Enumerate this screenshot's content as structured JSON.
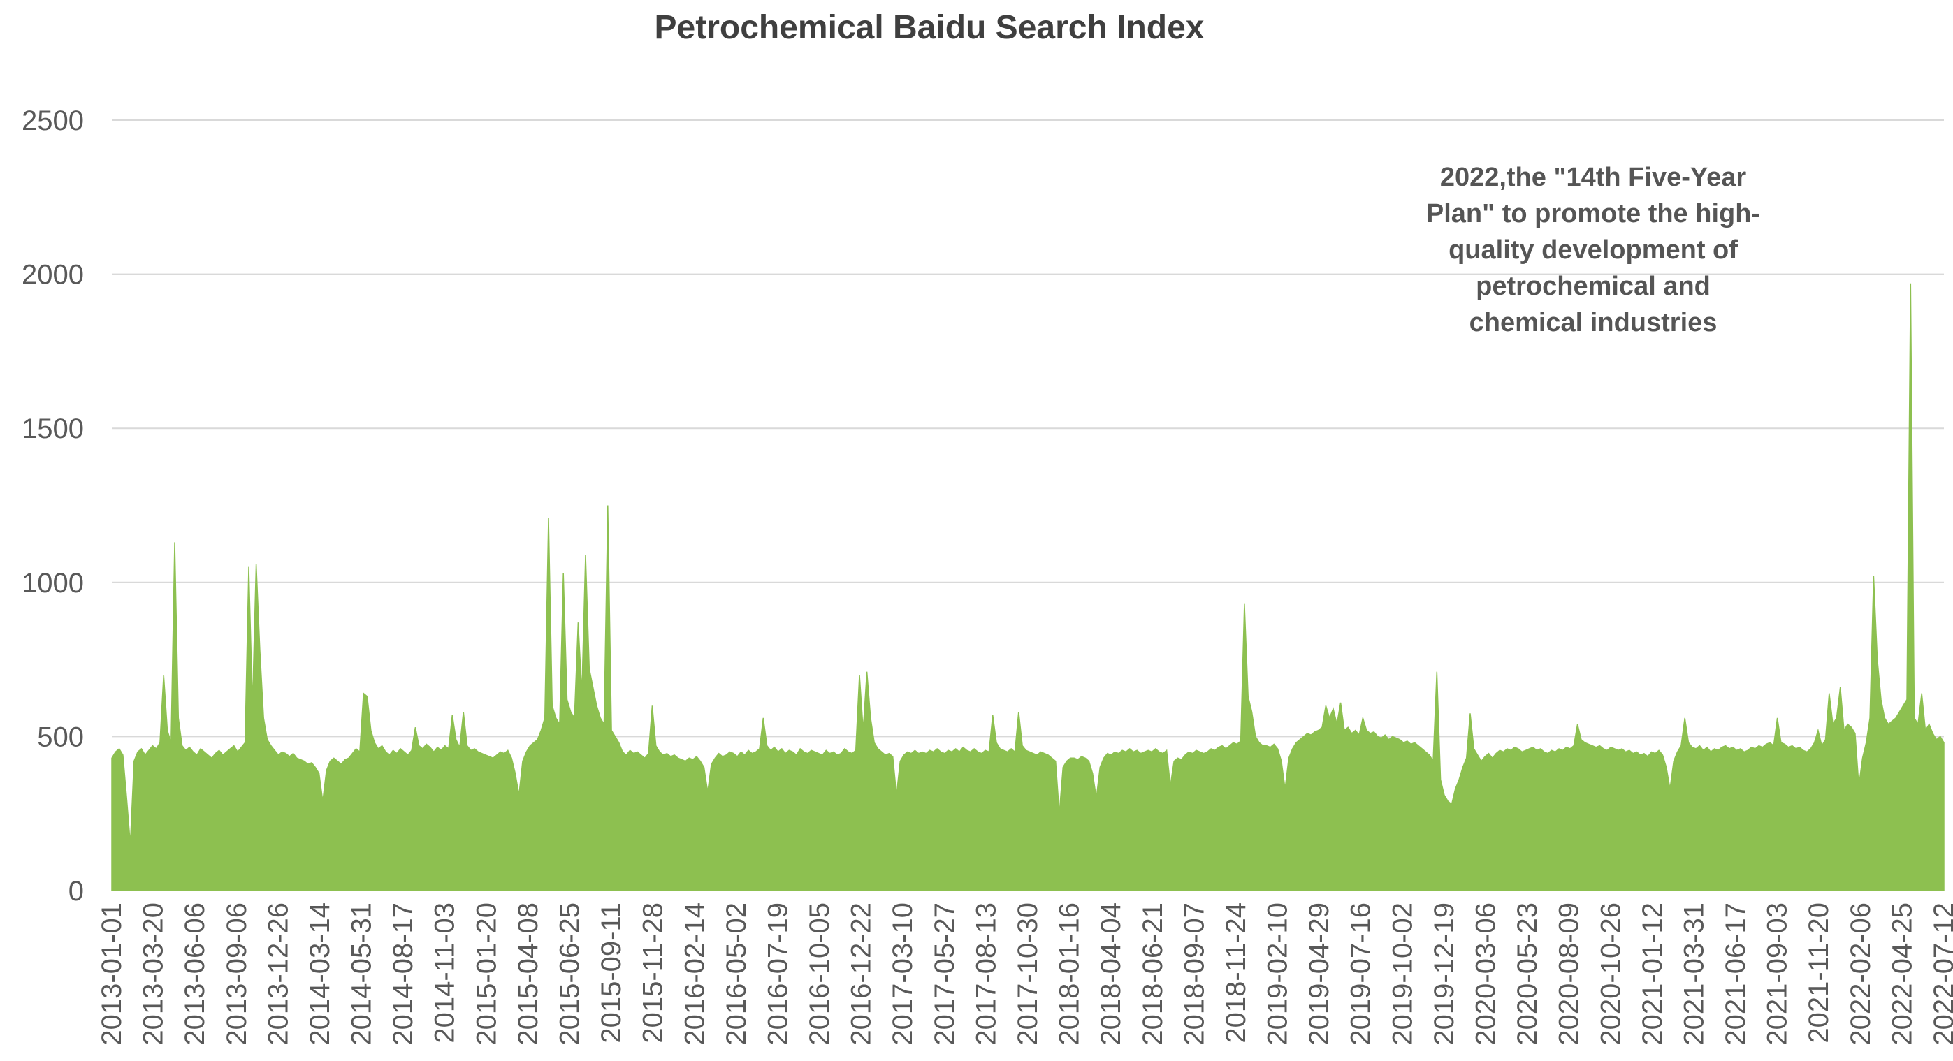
{
  "title": "Petrochemical Baidu Search Index",
  "annotation": {
    "lines": [
      "2022,the \"14th Five-Year",
      "Plan\" to promote the high-",
      "quality development of",
      "petrochemical and",
      "chemical industries"
    ]
  },
  "chart_data": {
    "type": "area",
    "title": "Petrochemical Baidu Search Index",
    "xlabel": "",
    "ylabel": "",
    "ylim": [
      0,
      2500
    ],
    "yticks": [
      0,
      500,
      1000,
      1500,
      2000,
      2500
    ],
    "grid": "horizontal",
    "legend": "none",
    "series_name": "Baidu Search Index",
    "series_color": "#8DC050",
    "gridline_color": "#D9D9D9",
    "text_color": "#595959",
    "x_range": [
      "2013-01-01",
      "2022-07-12"
    ],
    "sampling": "weekly",
    "x_tick_labels": [
      "2013-01-01",
      "2013-03-20",
      "2013-06-06",
      "2013-09-06",
      "2013-12-26",
      "2014-03-14",
      "2014-05-31",
      "2014-08-17",
      "2014-11-03",
      "2015-01-20",
      "2015-04-08",
      "2015-06-25",
      "2015-09-11",
      "2015-11-28",
      "2016-02-14",
      "2016-05-02",
      "2016-07-19",
      "2016-10-05",
      "2016-12-22",
      "2017-03-10",
      "2017-05-27",
      "2017-08-13",
      "2017-10-30",
      "2018-01-16",
      "2018-04-04",
      "2018-06-21",
      "2018-09-07",
      "2018-11-24",
      "2019-02-10",
      "2019-04-29",
      "2019-07-16",
      "2019-10-02",
      "2019-12-19",
      "2020-03-06",
      "2020-05-23",
      "2020-08-09",
      "2020-10-26",
      "2021-01-12",
      "2021-03-31",
      "2021-06-17",
      "2021-09-03",
      "2021-11-20",
      "2022-02-06",
      "2022-04-25",
      "2022-07-12"
    ],
    "values": [
      430,
      450,
      460,
      440,
      300,
      150,
      420,
      450,
      460,
      440,
      455,
      470,
      460,
      480,
      700,
      520,
      480,
      1130,
      560,
      470,
      455,
      465,
      450,
      440,
      460,
      450,
      440,
      430,
      445,
      455,
      440,
      450,
      460,
      470,
      450,
      465,
      480,
      1050,
      600,
      1060,
      780,
      560,
      490,
      470,
      455,
      440,
      450,
      445,
      435,
      445,
      430,
      425,
      420,
      410,
      415,
      400,
      380,
      290,
      390,
      420,
      430,
      420,
      410,
      425,
      430,
      445,
      460,
      450,
      640,
      630,
      520,
      480,
      460,
      470,
      450,
      440,
      455,
      445,
      460,
      450,
      440,
      455,
      530,
      470,
      460,
      475,
      465,
      450,
      465,
      455,
      470,
      460,
      570,
      490,
      465,
      580,
      470,
      455,
      460,
      450,
      445,
      440,
      435,
      430,
      440,
      450,
      445,
      455,
      430,
      380,
      310,
      420,
      450,
      470,
      480,
      490,
      520,
      560,
      1210,
      600,
      560,
      540,
      1030,
      620,
      580,
      560,
      870,
      640,
      1090,
      720,
      660,
      600,
      560,
      540,
      1250,
      520,
      500,
      480,
      450,
      440,
      455,
      445,
      450,
      440,
      430,
      445,
      600,
      470,
      450,
      440,
      445,
      435,
      440,
      430,
      425,
      420,
      430,
      425,
      435,
      420,
      400,
      320,
      410,
      430,
      445,
      435,
      440,
      450,
      445,
      435,
      450,
      440,
      455,
      445,
      450,
      460,
      560,
      470,
      455,
      465,
      450,
      460,
      445,
      455,
      450,
      440,
      460,
      450,
      445,
      455,
      450,
      445,
      440,
      455,
      445,
      450,
      440,
      445,
      460,
      450,
      445,
      455,
      700,
      520,
      710,
      560,
      480,
      460,
      450,
      440,
      445,
      435,
      310,
      420,
      440,
      450,
      445,
      455,
      445,
      450,
      445,
      455,
      450,
      460,
      450,
      445,
      455,
      450,
      460,
      450,
      465,
      455,
      450,
      460,
      450,
      445,
      455,
      450,
      570,
      480,
      460,
      455,
      450,
      460,
      450,
      580,
      470,
      455,
      450,
      445,
      440,
      450,
      445,
      440,
      430,
      420,
      250,
      400,
      420,
      430,
      430,
      425,
      435,
      430,
      420,
      380,
      300,
      400,
      430,
      445,
      440,
      450,
      445,
      455,
      450,
      460,
      450,
      455,
      445,
      450,
      455,
      450,
      460,
      450,
      445,
      455,
      340,
      420,
      430,
      425,
      440,
      450,
      445,
      455,
      450,
      445,
      450,
      460,
      455,
      465,
      470,
      460,
      470,
      480,
      475,
      485,
      930,
      630,
      580,
      500,
      480,
      470,
      470,
      465,
      475,
      460,
      420,
      330,
      430,
      460,
      480,
      490,
      500,
      510,
      505,
      515,
      520,
      530,
      600,
      560,
      590,
      540,
      610,
      520,
      530,
      510,
      520,
      505,
      560,
      520,
      510,
      515,
      500,
      495,
      505,
      490,
      500,
      495,
      490,
      480,
      485,
      475,
      480,
      470,
      460,
      450,
      440,
      420,
      710,
      360,
      310,
      290,
      280,
      330,
      360,
      400,
      430,
      575,
      460,
      440,
      420,
      435,
      445,
      430,
      445,
      455,
      450,
      460,
      455,
      465,
      460,
      450,
      455,
      460,
      465,
      455,
      460,
      450,
      445,
      455,
      450,
      460,
      455,
      465,
      460,
      470,
      540,
      490,
      480,
      475,
      470,
      465,
      470,
      460,
      455,
      465,
      460,
      455,
      460,
      450,
      455,
      445,
      450,
      440,
      445,
      435,
      450,
      445,
      455,
      440,
      400,
      330,
      420,
      450,
      470,
      560,
      480,
      465,
      460,
      470,
      455,
      465,
      450,
      460,
      455,
      465,
      470,
      460,
      465,
      455,
      460,
      450,
      455,
      465,
      460,
      470,
      465,
      475,
      480,
      470,
      560,
      480,
      475,
      465,
      470,
      460,
      465,
      455,
      450,
      460,
      480,
      520,
      470,
      490,
      640,
      540,
      560,
      660,
      520,
      540,
      530,
      510,
      340,
      430,
      480,
      560,
      1020,
      750,
      620,
      560,
      540,
      550,
      560,
      580,
      600,
      620,
      1970,
      560,
      540,
      640,
      520,
      540,
      510,
      490,
      500,
      480
    ]
  }
}
